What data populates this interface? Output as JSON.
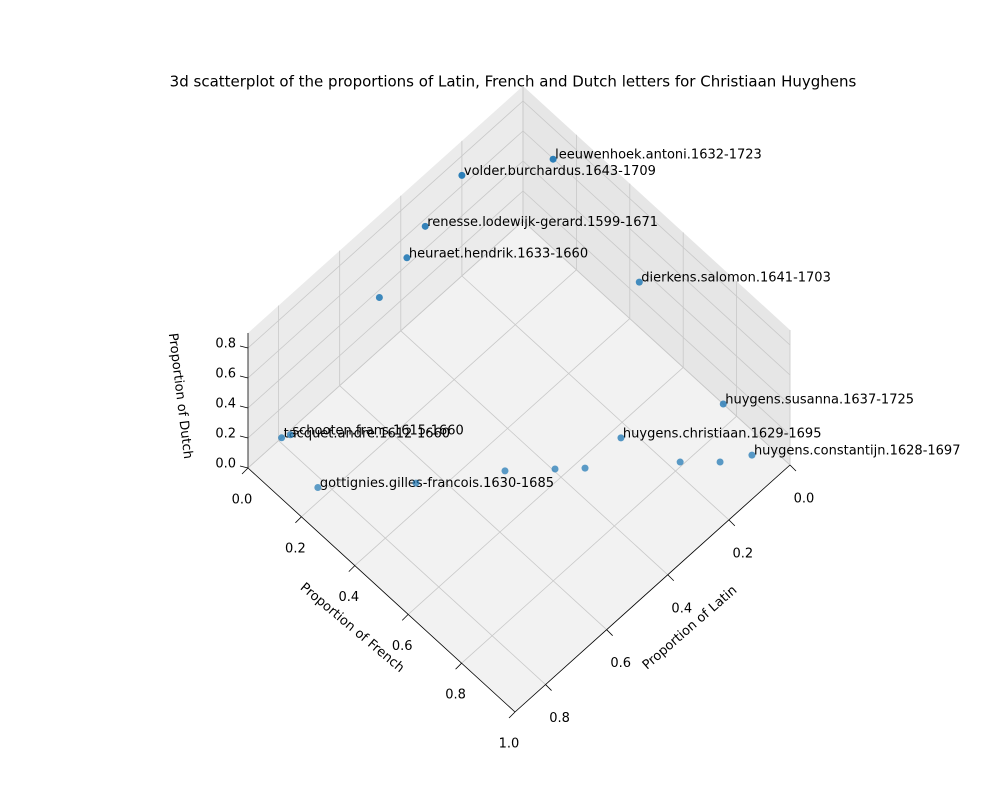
{
  "chart_data": {
    "type": "scatter3d",
    "title": "3d scatterplot of the proportions of Latin, French and Dutch letters for Christiaan Huyghens",
    "xlabel": "Proportion of Latin",
    "ylabel": "Proportion of French",
    "zlabel": "Proportion of Dutch",
    "color": "#1f77b4",
    "grid": true,
    "xlim": [
      0,
      0.9
    ],
    "ylim": [
      0,
      1.0
    ],
    "zlim": [
      0,
      0.9
    ],
    "xticks": [
      {
        "value": 0,
        "label": "0.0"
      },
      0.2,
      0.4,
      0.6,
      0.8
    ],
    "yticks": [
      {
        "value": 0,
        "label": "0.0"
      },
      0.2,
      0.4,
      0.6,
      0.8,
      {
        "value": 1,
        "label": "1.0"
      }
    ],
    "zticks": [
      {
        "value": 0,
        "label": "0.0"
      },
      0.2,
      0.4,
      0.6,
      0.8
    ],
    "x": [
      0.05,
      0.2,
      0.32,
      0.38,
      0.47,
      0.1,
      0,
      0.23,
      0.045,
      0.79,
      0.77,
      0.82,
      0.65,
      0.481,
      0.395,
      0.344,
      0.176,
      0.11
    ],
    "y": [
      0.17,
      0,
      0,
      0,
      0,
      0.55,
      0.75,
      0.63,
      0.909,
      0,
      0.01,
      0.17,
      0.343,
      0.483,
      0.572,
      0.626,
      0.79,
      0.864
    ],
    "z": [
      0.78,
      0.67,
      0.55,
      0.45,
      0.35,
      0.67,
      0,
      0,
      0,
      0,
      0,
      0,
      0,
      0,
      0,
      0,
      0,
      0
    ],
    "labels": [
      "leeuwenhoek.antoni.1632-1723",
      "volder.burchardus.1643-1709",
      "renesse.lodewijk-gerard.1599-1671",
      "heuraet.hendrik.1633-1660",
      null,
      "dierkens.salomon.1641-1703",
      "huygens.susanna.1637-1725",
      "huygens.christiaan.1629-1695",
      "huygens.constantijn.1628-1697",
      "tacquet.andre.1612-1660",
      "schooten.frans.1615-1660",
      "gottignies.gilles-francois.1630-1685",
      null,
      null,
      null,
      null,
      null,
      null
    ]
  }
}
